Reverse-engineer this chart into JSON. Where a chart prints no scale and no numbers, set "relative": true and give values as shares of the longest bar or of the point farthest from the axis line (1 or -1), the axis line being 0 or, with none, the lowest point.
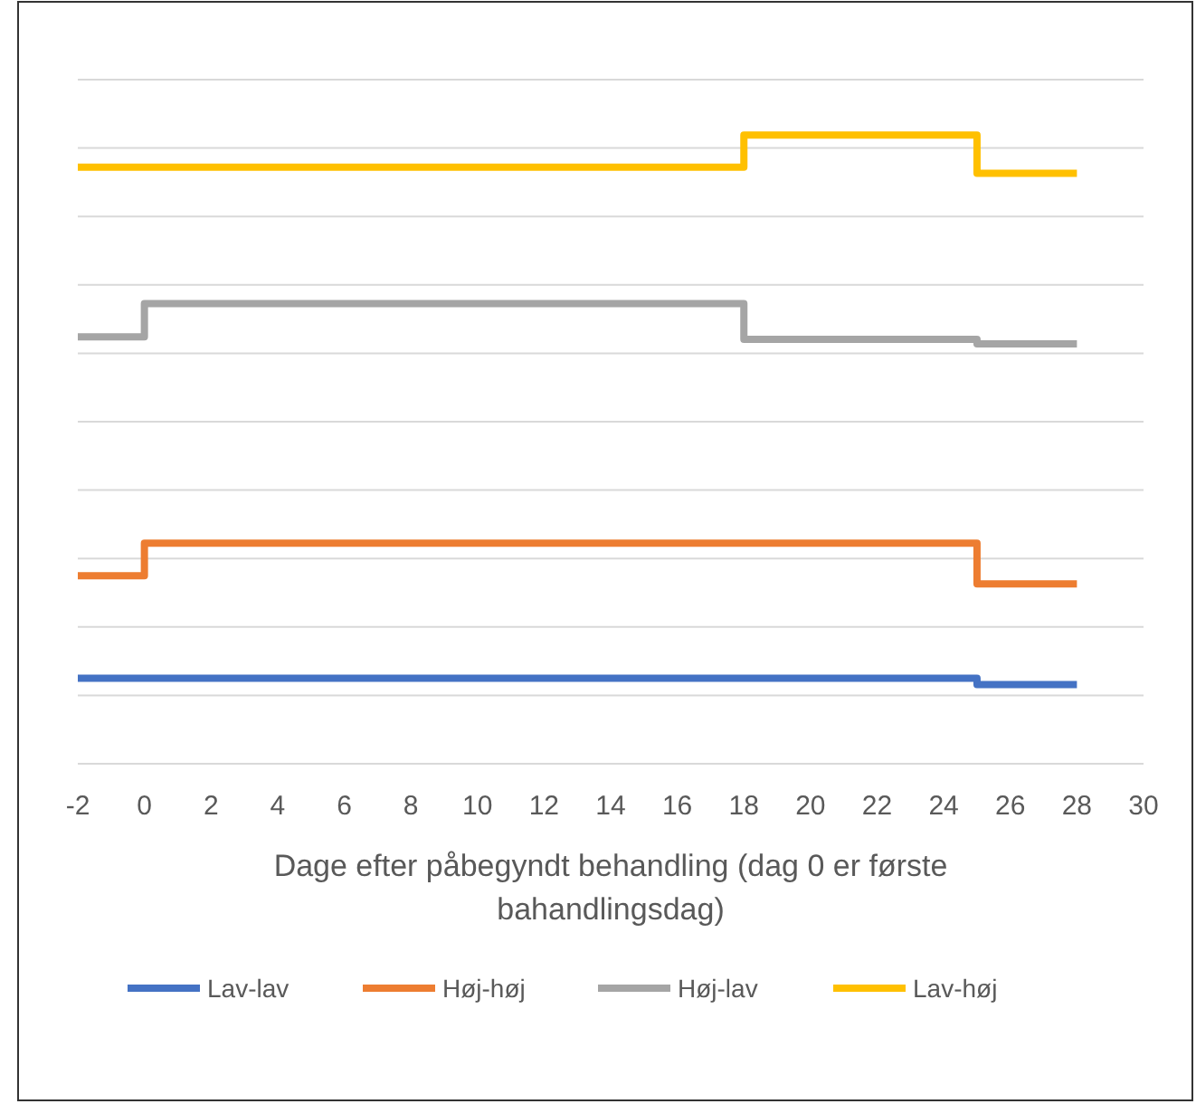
{
  "chart_data": {
    "type": "step",
    "relative": true,
    "xlabel": "Dage efter påbegyndt behandling (dag 0 er første bahandlingsdag)",
    "xlim": [
      -2,
      30
    ],
    "xticks": [
      -2,
      0,
      2,
      4,
      6,
      8,
      10,
      12,
      14,
      16,
      18,
      20,
      22,
      24,
      26,
      28,
      30
    ],
    "grid": "y",
    "legend": "bottom",
    "marker": "none",
    "line_style": "solid",
    "series": [
      {
        "name": "Lav-lav",
        "color": "#4472c4",
        "x": [
          -2,
          25,
          28
        ],
        "values": [
          0.136,
          0.126,
          0.126
        ]
      },
      {
        "name": "Høj-høj",
        "color": "#ed7d31",
        "x": [
          -2,
          0,
          25,
          28
        ],
        "values": [
          0.299,
          0.351,
          0.286,
          0.286
        ]
      },
      {
        "name": "Høj-lav",
        "color": "#a5a5a5",
        "x": [
          -2,
          0,
          18,
          25,
          28
        ],
        "values": [
          0.679,
          0.732,
          0.675,
          0.668,
          0.668
        ]
      },
      {
        "name": "Lav-høj",
        "color": "#ffc000",
        "x": [
          -2,
          18,
          25,
          28
        ],
        "values": [
          0.949,
          1,
          0.939,
          0.939
        ]
      }
    ]
  }
}
